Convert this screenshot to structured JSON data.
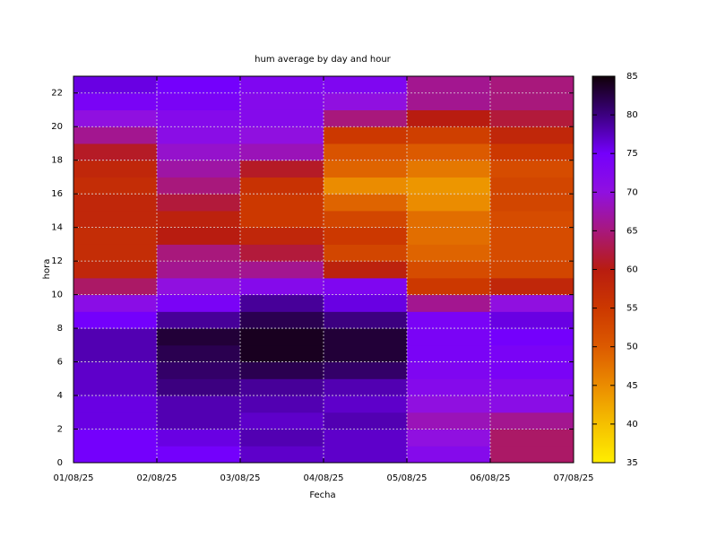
{
  "chart_data": {
    "type": "heatmap",
    "title": "hum average by day and hour",
    "x_label": "Fecha",
    "y_label": "hora",
    "xticks": [
      "01/08/25",
      "02/08/25",
      "03/08/25",
      "04/08/25",
      "05/08/25",
      "06/08/25",
      "07/08/25"
    ],
    "y": [
      0,
      1,
      2,
      3,
      4,
      5,
      6,
      7,
      8,
      9,
      10,
      11,
      12,
      13,
      14,
      15,
      16,
      17,
      18,
      19,
      20,
      21,
      22
    ],
    "ylim": [
      0,
      23
    ],
    "yticks": [
      0,
      2,
      4,
      6,
      8,
      10,
      12,
      14,
      16,
      18,
      20,
      22
    ],
    "series": [
      {
        "values": [
          75,
          75,
          76,
          76,
          77,
          77,
          78,
          78,
          75,
          71,
          64,
          58,
          57,
          57,
          58,
          58,
          57,
          58,
          61,
          66,
          70,
          74,
          76
        ]
      },
      {
        "values": [
          75,
          76,
          78,
          78,
          80,
          81,
          82,
          83,
          79,
          74,
          70,
          66,
          65,
          60,
          59,
          62,
          65,
          67,
          69,
          71,
          72,
          74,
          75
        ]
      },
      {
        "values": [
          77,
          78,
          77,
          78,
          79,
          82,
          84,
          84,
          82,
          79,
          72,
          66,
          62,
          58,
          55,
          55,
          56,
          61,
          68,
          70,
          72,
          72,
          73
        ]
      },
      {
        "values": [
          77,
          77,
          78,
          77,
          78,
          81,
          83,
          83,
          80,
          76,
          73,
          59,
          53,
          55,
          53,
          49,
          45,
          49,
          51,
          55,
          65,
          70,
          73
        ]
      },
      {
        "values": [
          72,
          70,
          68,
          70,
          72,
          73,
          74,
          74,
          74,
          66,
          55,
          52,
          49,
          48,
          48,
          45,
          44,
          47,
          50,
          54,
          60,
          66,
          66
        ]
      },
      {
        "values": [
          64,
          64,
          66,
          71,
          72,
          74,
          74,
          75,
          76,
          70,
          58,
          53,
          52,
          52,
          52,
          53,
          53,
          52,
          55,
          58,
          62,
          65,
          65
        ]
      }
    ],
    "zlim": [
      35,
      85
    ],
    "zticks": [
      35,
      40,
      45,
      50,
      55,
      60,
      65,
      70,
      75,
      80,
      85
    ],
    "palette": [
      "#ffee00",
      "#f5c000",
      "#eb8c00",
      "#dc5a00",
      "#cc3800",
      "#b81c10",
      "#a8187c",
      "#9010e0",
      "#7400fc",
      "#3c0080",
      "#100008"
    ],
    "grid": true
  }
}
